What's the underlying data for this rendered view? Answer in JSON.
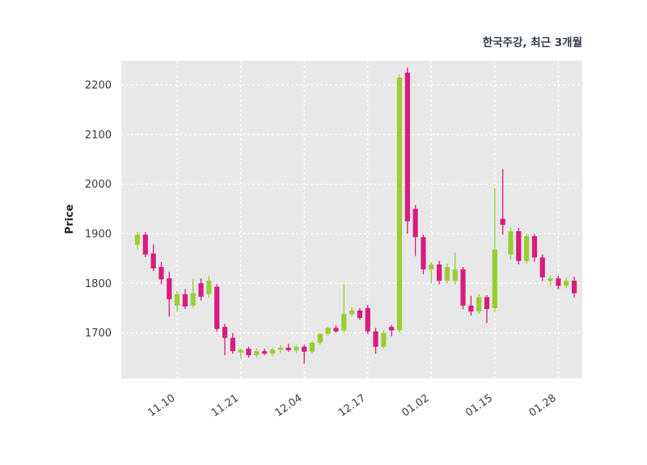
{
  "chart_data": {
    "type": "candlestick",
    "title": "한국주강, 최근 3개월",
    "ylabel": "Price",
    "y_ticks": [
      1700,
      1800,
      1900,
      2000,
      2100,
      2200
    ],
    "ylim": [
      1608,
      2249
    ],
    "grid": true,
    "background": "#e8e8e8",
    "grid_color": "#ffffff",
    "up_color": "#9acd32",
    "down_color": "#d81b7e",
    "x_ticks": [
      {
        "index": 5,
        "label": "11.10"
      },
      {
        "index": 13,
        "label": "11.21"
      },
      {
        "index": 21,
        "label": "12.04"
      },
      {
        "index": 29,
        "label": "12.17"
      },
      {
        "index": 37,
        "label": "01.02"
      },
      {
        "index": 45,
        "label": "01.15"
      },
      {
        "index": 53,
        "label": "01.28"
      }
    ],
    "candles_format": [
      "open",
      "high",
      "low",
      "close"
    ],
    "candles": [
      [
        1878,
        1903,
        1868,
        1898
      ],
      [
        1898,
        1903,
        1853,
        1858
      ],
      [
        1860,
        1878,
        1825,
        1830
      ],
      [
        1833,
        1843,
        1798,
        1808
      ],
      [
        1810,
        1823,
        1733,
        1768
      ],
      [
        1755,
        1783,
        1743,
        1778
      ],
      [
        1778,
        1788,
        1748,
        1753
      ],
      [
        1755,
        1808,
        1750,
        1780
      ],
      [
        1800,
        1810,
        1765,
        1773
      ],
      [
        1778,
        1815,
        1772,
        1805
      ],
      [
        1793,
        1798,
        1703,
        1708
      ],
      [
        1712,
        1718,
        1655,
        1690
      ],
      [
        1690,
        1700,
        1658,
        1663
      ],
      [
        1660,
        1668,
        1648,
        1666
      ],
      [
        1668,
        1672,
        1650,
        1655
      ],
      [
        1655,
        1668,
        1650,
        1663
      ],
      [
        1663,
        1668,
        1655,
        1658
      ],
      [
        1658,
        1670,
        1653,
        1666
      ],
      [
        1666,
        1675,
        1660,
        1670
      ],
      [
        1670,
        1678,
        1662,
        1665
      ],
      [
        1665,
        1675,
        1660,
        1672
      ],
      [
        1672,
        1676,
        1638,
        1662
      ],
      [
        1662,
        1683,
        1658,
        1680
      ],
      [
        1680,
        1700,
        1676,
        1698
      ],
      [
        1698,
        1713,
        1694,
        1710
      ],
      [
        1710,
        1715,
        1700,
        1703
      ],
      [
        1705,
        1798,
        1700,
        1738
      ],
      [
        1738,
        1752,
        1733,
        1745
      ],
      [
        1745,
        1750,
        1726,
        1730
      ],
      [
        1750,
        1756,
        1698,
        1703
      ],
      [
        1703,
        1710,
        1658,
        1672
      ],
      [
        1672,
        1705,
        1668,
        1700
      ],
      [
        1712,
        1716,
        1693,
        1705
      ],
      [
        1705,
        2222,
        1700,
        2215
      ],
      [
        2225,
        2235,
        1900,
        1925
      ],
      [
        1950,
        1958,
        1855,
        1893
      ],
      [
        1893,
        1898,
        1818,
        1828
      ],
      [
        1828,
        1843,
        1800,
        1838
      ],
      [
        1838,
        1845,
        1798,
        1805
      ],
      [
        1805,
        1840,
        1800,
        1833
      ],
      [
        1805,
        1862,
        1798,
        1828
      ],
      [
        1828,
        1833,
        1748,
        1755
      ],
      [
        1755,
        1775,
        1735,
        1743
      ],
      [
        1743,
        1778,
        1738,
        1772
      ],
      [
        1772,
        1776,
        1720,
        1748
      ],
      [
        1750,
        1992,
        1742,
        1868
      ],
      [
        1930,
        2030,
        1898,
        1918
      ],
      [
        1858,
        1912,
        1848,
        1905
      ],
      [
        1905,
        1912,
        1838,
        1845
      ],
      [
        1845,
        1900,
        1840,
        1895
      ],
      [
        1895,
        1900,
        1843,
        1852
      ],
      [
        1852,
        1858,
        1805,
        1812
      ],
      [
        1805,
        1815,
        1795,
        1810
      ],
      [
        1810,
        1815,
        1788,
        1795
      ],
      [
        1795,
        1812,
        1790,
        1805
      ],
      [
        1805,
        1813,
        1772,
        1780
      ]
    ]
  }
}
